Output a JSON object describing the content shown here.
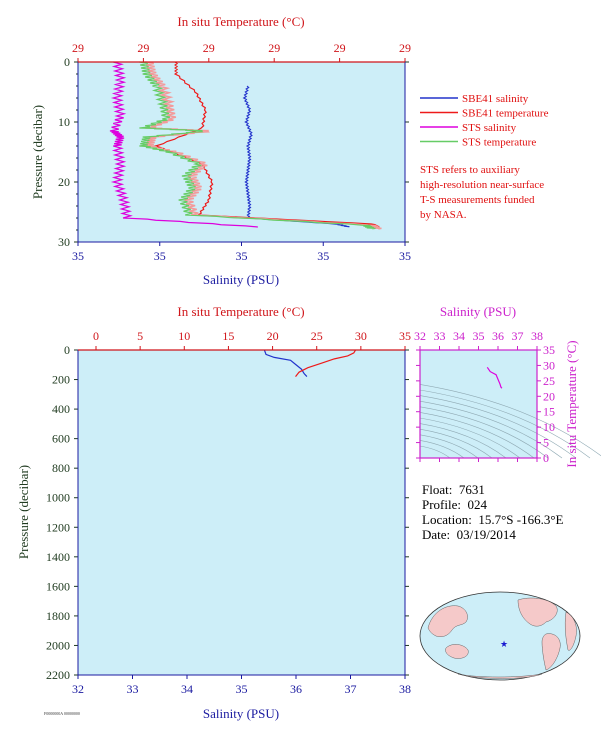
{
  "colors": {
    "plot_bg": "#cdeef8",
    "axis_red": "#d0151a",
    "axis_blue": "#1a1aa0",
    "axis_magenta": "#cc22cc",
    "axis_dark": "#1f3a1f",
    "sbe41_salinity": "#2233cc",
    "sbe41_temperature": "#ee1a1a",
    "sts_salinity": "#dd00dd",
    "sts_temperature": "#66cc66",
    "sts_temperature_pink": "#f39a9a"
  },
  "legend": [
    {
      "label": "SBE41 salinity",
      "color_key": "sbe41_salinity"
    },
    {
      "label": "SBE41 temperature",
      "color_key": "sbe41_temperature"
    },
    {
      "label": "STS salinity",
      "color_key": "sts_salinity"
    },
    {
      "label": "STS temperature",
      "color_key": "sts_temperature"
    }
  ],
  "note_lines": [
    "STS refers to auxiliary",
    "high-resolution near-surface",
    "T-S measurements funded",
    "by NASA."
  ],
  "info": {
    "float_label": "Float:",
    "float_value": "7631",
    "profile_label": "Profile:",
    "profile_value": "024",
    "location_label": "Location:",
    "location_value": "15.7°S  -166.3°E",
    "date_label": "Date:",
    "date_value": "03/19/2014"
  },
  "footer_text": "F0000000A 00000000",
  "chart_data": [
    {
      "id": "near-surface",
      "type": "line",
      "top_title": "In situ Temperature (°C)",
      "top_ticks": [
        "29",
        "29",
        "29",
        "29",
        "29",
        "29"
      ],
      "bottom_title": "Salinity (PSU)",
      "bottom_ticks": [
        "35",
        "35",
        "35",
        "35",
        "35"
      ],
      "ylabel": "Pressure (decibar)",
      "ylim": [
        0,
        30
      ],
      "y_ticks": [
        "0",
        "10",
        "20",
        "30"
      ],
      "series": [
        {
          "name": "SBE41 salinity",
          "color_key": "sbe41_salinity",
          "points": [
            [
              0.52,
              4
            ],
            [
              0.51,
              6
            ],
            [
              0.525,
              8
            ],
            [
              0.515,
              10
            ],
            [
              0.53,
              12
            ],
            [
              0.52,
              14
            ],
            [
              0.525,
              16
            ],
            [
              0.52,
              18
            ],
            [
              0.515,
              20
            ],
            [
              0.52,
              22
            ],
            [
              0.525,
              24
            ],
            [
              0.52,
              26
            ],
            [
              0.79,
              27
            ],
            [
              0.83,
              27.5
            ]
          ]
        },
        {
          "name": "SBE41 temperature",
          "color_key": "sbe41_temperature",
          "points": [
            [
              0.3,
              0
            ],
            [
              0.3,
              2
            ],
            [
              0.36,
              5
            ],
            [
              0.39,
              8
            ],
            [
              0.38,
              11
            ],
            [
              0.24,
              14
            ],
            [
              0.38,
              17
            ],
            [
              0.41,
              20
            ],
            [
              0.4,
              23
            ],
            [
              0.37,
              25.5
            ],
            [
              0.9,
              27
            ],
            [
              0.92,
              27.6
            ]
          ]
        },
        {
          "name": "STS salinity",
          "color_key": "sts_salinity",
          "points": [
            [
              0.12,
              0
            ],
            [
              0.13,
              3
            ],
            [
              0.12,
              6
            ],
            [
              0.13,
              9
            ],
            [
              0.11,
              11.5
            ],
            [
              0.13,
              12.5
            ],
            [
              0.12,
              14
            ],
            [
              0.13,
              17
            ],
            [
              0.12,
              20
            ],
            [
              0.14,
              23
            ],
            [
              0.15,
              26
            ],
            [
              0.55,
              27.5
            ]
          ]
        },
        {
          "name": "STS temperature",
          "color_key": "sts_temperature",
          "points": [
            [
              0.2,
              0
            ],
            [
              0.21,
              2
            ],
            [
              0.24,
              4
            ],
            [
              0.26,
              7
            ],
            [
              0.27,
              9.5
            ],
            [
              0.2,
              11
            ],
            [
              0.39,
              11.5
            ],
            [
              0.21,
              12.5
            ],
            [
              0.2,
              14
            ],
            [
              0.28,
              15
            ],
            [
              0.37,
              17
            ],
            [
              0.33,
              19
            ],
            [
              0.35,
              21
            ],
            [
              0.32,
              23
            ],
            [
              0.34,
              25.5
            ],
            [
              0.88,
              27.2
            ],
            [
              0.9,
              27.8
            ]
          ]
        }
      ]
    },
    {
      "id": "full-profile",
      "type": "line",
      "top_title": "In situ Temperature (°C)",
      "top_ticks": [
        "0",
        "5",
        "10",
        "15",
        "20",
        "25",
        "30",
        "35"
      ],
      "xlim_temperature": [
        0,
        35
      ],
      "bottom_title": "Salinity (PSU)",
      "bottom_ticks": [
        "32",
        "33",
        "34",
        "35",
        "36",
        "37",
        "38"
      ],
      "xlim_salinity": [
        32,
        38
      ],
      "ylabel": "Pressure (decibar)",
      "ylim": [
        0,
        2200
      ],
      "y_ticks": [
        "0",
        "200",
        "400",
        "600",
        "800",
        "1000",
        "1200",
        "1400",
        "1600",
        "1800",
        "2000",
        "2200"
      ],
      "series": [
        {
          "name": "SBE41 salinity",
          "color_key": "sbe41_salinity",
          "axis": "salinity",
          "x": [
            35.42,
            35.45,
            35.6,
            35.9,
            36.0,
            36.1,
            36.15,
            36.2
          ],
          "y": [
            0,
            30,
            50,
            70,
            100,
            130,
            160,
            180
          ]
        },
        {
          "name": "SBE41 temperature",
          "color_key": "sbe41_temperature",
          "axis": "temperature",
          "x": [
            29.4,
            29.2,
            28.5,
            27.0,
            25.5,
            24.0,
            23.0,
            22.6
          ],
          "y": [
            0,
            20,
            40,
            60,
            90,
            120,
            150,
            180
          ]
        }
      ]
    },
    {
      "id": "ts-diagram",
      "type": "line",
      "top_title": "Salinity (PSU)",
      "top_ticks": [
        "32",
        "33",
        "34",
        "35",
        "36",
        "37",
        "38"
      ],
      "xlim": [
        32,
        38
      ],
      "right_title": "In situ Temperature (°C)",
      "right_ticks": [
        "0",
        "5",
        "10",
        "15",
        "20",
        "25",
        "30",
        "35"
      ],
      "ylim": [
        0,
        35
      ],
      "series": [
        {
          "name": "T-S",
          "color_key": "sts_salinity",
          "x": [
            35.45,
            35.6,
            35.9,
            36.0,
            36.1,
            36.15,
            36.2
          ],
          "y": [
            29.4,
            28.0,
            27.0,
            25.5,
            24.0,
            23.0,
            22.6
          ]
        }
      ]
    }
  ]
}
